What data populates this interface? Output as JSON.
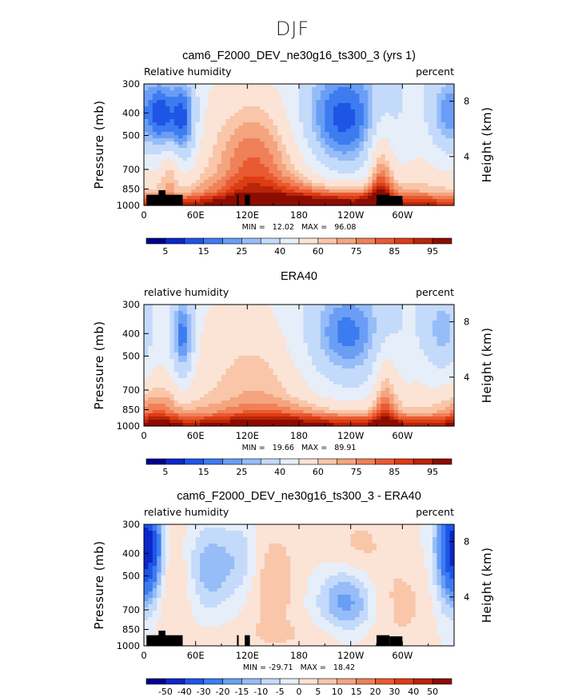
{
  "figure_title": "DJF",
  "colors": {
    "abs_palette": [
      "#00008c",
      "#0a28c8",
      "#1e55e6",
      "#3c7cf0",
      "#6a9ef5",
      "#96bdf8",
      "#c4dafa",
      "#e6eef9",
      "#fbe3d6",
      "#f9c6aa",
      "#f4a57e",
      "#f08058",
      "#e95a32",
      "#dd3c14",
      "#b82509",
      "#8c0c00"
    ],
    "diff_palette": [
      "#00008c",
      "#0a28c8",
      "#1e55e6",
      "#3c7cf0",
      "#6a9ef5",
      "#96bdf8",
      "#c4dafa",
      "#e6eef9",
      "#fbe3d6",
      "#f9c6aa",
      "#f4a57e",
      "#f08058",
      "#e95a32",
      "#dd3c14",
      "#b82509",
      "#8c0c00"
    ],
    "land": "#000000"
  },
  "chart_data": [
    {
      "type": "heatmap",
      "title": "cam6_F2000_DEV_ne30g16_ts300_3 (yrs 1)",
      "left_label": "Relative humidity",
      "right_label": "percent",
      "ylabel": "Pressure (mb)",
      "ylabel_right": "Height (km)",
      "x_ticks": [
        "0",
        "60E",
        "120E",
        "180",
        "120W",
        "60W"
      ],
      "y_ticks": [
        "300",
        "400",
        "500",
        "700",
        "850",
        "1000"
      ],
      "y_ticks_right": [
        "8",
        "4"
      ],
      "xlim": [
        0,
        360
      ],
      "ylim": [
        1000,
        300
      ],
      "log_y": true,
      "stats": "MIN =   12.02   MAX =   96.08",
      "colorbar_labels": [
        "5",
        "15",
        "25",
        "40",
        "60",
        "75",
        "85",
        "95"
      ],
      "field": "abs",
      "base": 0,
      "blobs": [
        {
          "lon": 45,
          "p": 430,
          "r": 12,
          "h": 160,
          "a": -38
        },
        {
          "lon": 20,
          "p": 410,
          "r": 10,
          "h": 130,
          "a": -25
        },
        {
          "lon": 232,
          "p": 430,
          "r": 45,
          "h": 260,
          "a": -33
        },
        {
          "lon": 222,
          "p": 470,
          "r": 28,
          "h": 170,
          "a": -8
        },
        {
          "lon": 355,
          "p": 410,
          "r": 18,
          "h": 160,
          "a": -28
        },
        {
          "lon": 160,
          "p": 600,
          "r": 38,
          "h": 420,
          "a": 12
        },
        {
          "lon": 120,
          "p": 700,
          "r": 28,
          "h": 460,
          "a": 14
        },
        {
          "lon": 30,
          "p": 700,
          "r": 8,
          "h": 120,
          "a": 12
        },
        {
          "lon": 275,
          "p": 800,
          "r": 10,
          "h": 500,
          "a": 26
        },
        {
          "lon": 190,
          "p": 930,
          "r": 110,
          "h": 120,
          "a": 18
        },
        {
          "lon": 240,
          "p": 940,
          "r": 40,
          "h": 80,
          "a": 8
        }
      ],
      "land": [
        [
          3,
          900,
          25,
          1000
        ],
        [
          17,
          860,
          25,
          1000
        ],
        [
          25,
          900,
          45,
          1000
        ],
        [
          108,
          900,
          110,
          1000
        ],
        [
          117,
          900,
          123,
          1000
        ],
        [
          270,
          900,
          285,
          1000
        ],
        [
          285,
          910,
          300,
          1000
        ]
      ]
    },
    {
      "type": "heatmap",
      "title": "ERA40",
      "left_label": "relative humidity",
      "right_label": "percent",
      "ylabel": "Pressure (mb)",
      "ylabel_right": "Height (km)",
      "x_ticks": [
        "0",
        "60E",
        "120E",
        "180",
        "120W",
        "60W"
      ],
      "y_ticks": [
        "300",
        "400",
        "500",
        "700",
        "850",
        "1000"
      ],
      "y_ticks_right": [
        "8",
        "4"
      ],
      "xlim": [
        0,
        360
      ],
      "ylim": [
        1000,
        300
      ],
      "log_y": true,
      "stats": "MIN =   19.66   MAX =   89.91",
      "colorbar_labels": [
        "5",
        "15",
        "25",
        "40",
        "60",
        "75",
        "85",
        "95"
      ],
      "field": "abs",
      "base": 0,
      "blobs": [
        {
          "lon": 45,
          "p": 420,
          "r": 10,
          "h": 160,
          "a": -34
        },
        {
          "lon": 235,
          "p": 430,
          "r": 48,
          "h": 260,
          "a": -26
        },
        {
          "lon": 235,
          "p": 400,
          "r": 22,
          "h": 110,
          "a": -8
        },
        {
          "lon": 348,
          "p": 400,
          "r": 18,
          "h": 160,
          "a": -22
        },
        {
          "lon": 140,
          "p": 600,
          "r": 42,
          "h": 500,
          "a": 10
        },
        {
          "lon": 280,
          "p": 800,
          "r": 10,
          "h": 420,
          "a": 20
        },
        {
          "lon": 190,
          "p": 950,
          "r": 120,
          "h": 120,
          "a": 16
        },
        {
          "lon": 15,
          "p": 900,
          "r": 20,
          "h": 200,
          "a": 14
        }
      ],
      "land": []
    },
    {
      "type": "heatmap",
      "title": "cam6_F2000_DEV_ne30g16_ts300_3 - ERA40",
      "left_label": "relative humidity",
      "right_label": "percent",
      "ylabel": "Pressure (mb)",
      "ylabel_right": "Height (km)",
      "x_ticks": [
        "0",
        "60E",
        "120E",
        "180",
        "120W",
        "60W"
      ],
      "y_ticks": [
        "300",
        "400",
        "500",
        "700",
        "850",
        "1000"
      ],
      "y_ticks_right": [
        "8",
        "4"
      ],
      "xlim": [
        0,
        360
      ],
      "ylim": [
        1000,
        300
      ],
      "log_y": true,
      "stats": "MIN = -29.71   MAX =   18.42",
      "colorbar_labels": [
        "-50",
        "-40",
        "-30",
        "-20",
        "-15",
        "-10",
        "-5",
        "0",
        "5",
        "10",
        "15",
        "20",
        "30",
        "40",
        "50"
      ],
      "field": "diff",
      "base": 0,
      "blobs": [
        {
          "lon": 8,
          "p": 380,
          "r": 10,
          "h": 140,
          "a": -28
        },
        {
          "lon": 355,
          "p": 380,
          "r": 12,
          "h": 170,
          "a": -30
        },
        {
          "lon": 78,
          "p": 460,
          "r": 18,
          "h": 150,
          "a": -14
        },
        {
          "lon": 235,
          "p": 640,
          "r": 22,
          "h": 160,
          "a": -18
        },
        {
          "lon": 115,
          "p": 420,
          "r": 14,
          "h": 120,
          "a": -8
        },
        {
          "lon": 150,
          "p": 520,
          "r": 20,
          "h": 220,
          "a": 9
        },
        {
          "lon": 250,
          "p": 380,
          "r": 30,
          "h": 140,
          "a": 6
        },
        {
          "lon": 35,
          "p": 560,
          "r": 14,
          "h": 280,
          "a": 6
        },
        {
          "lon": 180,
          "p": 900,
          "r": 80,
          "h": 120,
          "a": 4
        },
        {
          "lon": 300,
          "p": 650,
          "r": 25,
          "h": 200,
          "a": 6
        }
      ],
      "land": [
        [
          3,
          900,
          25,
          1000
        ],
        [
          17,
          860,
          25,
          1000
        ],
        [
          25,
          900,
          45,
          1000
        ],
        [
          108,
          900,
          110,
          1000
        ],
        [
          117,
          900,
          123,
          1000
        ],
        [
          270,
          900,
          285,
          1000
        ],
        [
          285,
          910,
          300,
          1000
        ]
      ]
    }
  ]
}
